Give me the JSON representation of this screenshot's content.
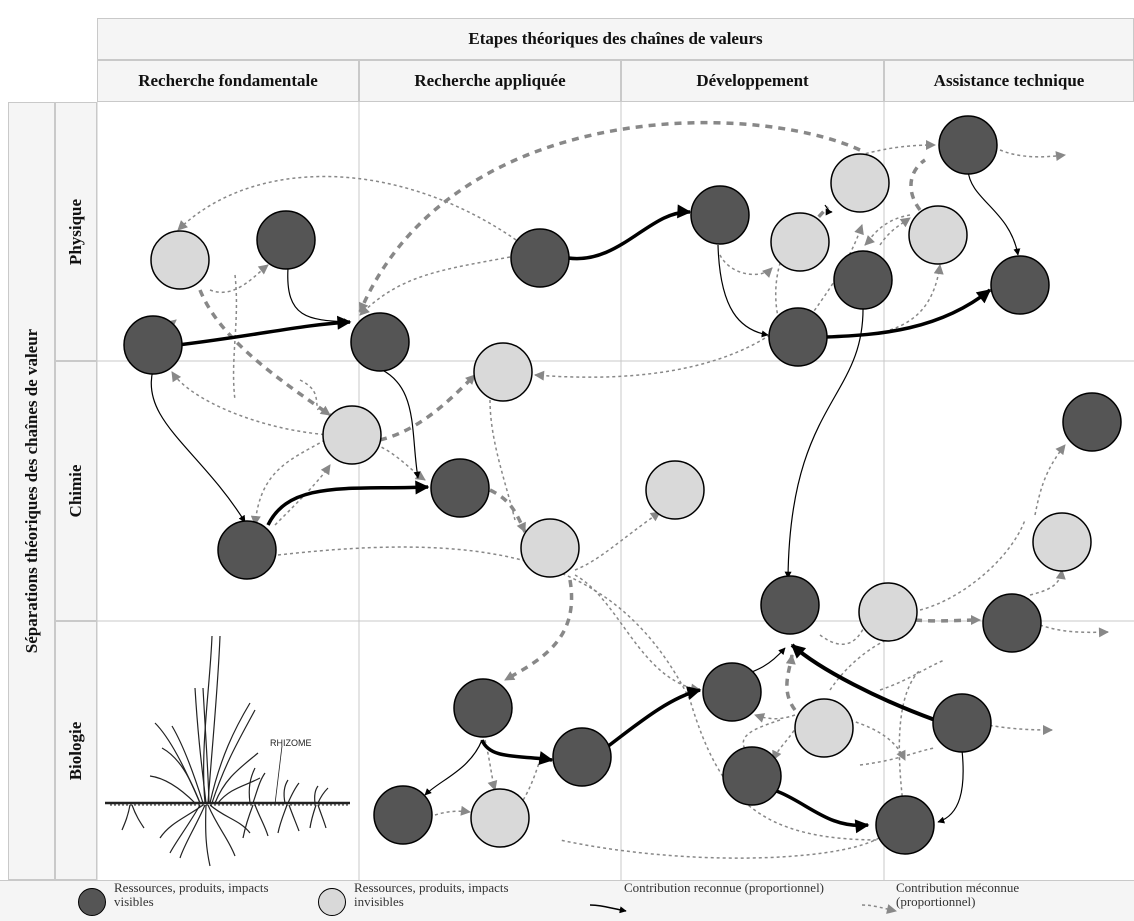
{
  "header": {
    "title": "Etapes théoriques des chaînes de valeurs",
    "columns": [
      "Recherche fondamentale",
      "Recherche appliquée",
      "Développement",
      "Assistance technique"
    ]
  },
  "side_label": "Séparations théoriques des chaînes de valeur",
  "rows": [
    "Physique",
    "Chimie",
    "Biologie"
  ],
  "plant_label": "RHIZOME",
  "legend": {
    "visible": "Ressources, produits, impacts visibles",
    "invisible": "Ressources, produits, impacts invisibles",
    "recognized": "Contribution reconnue (proportionnel)",
    "unrecognized": "Contribution méconnue (proportionnel)"
  },
  "colors": {
    "visible_node": "#555555",
    "invisible_node": "#d9d9d9",
    "recognized_arrow": "#000000",
    "unrecognized_arrow": "#888888",
    "grid": "#c9c9c9"
  }
}
